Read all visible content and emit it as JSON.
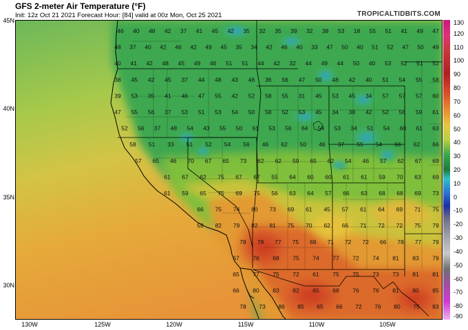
{
  "header": {
    "title": "GFS 2-meter Air Temperature (°F)",
    "subtitle": "Init: 12z Oct 21 2021   Forecast Hour: [84]   valid at 00z Mon, Oct 25 2021",
    "brand": "TROPICALTIDBITS.COM"
  },
  "axes": {
    "lat_labels": [
      "45N",
      "40N",
      "35N",
      "30N"
    ],
    "lon_labels": [
      "130W",
      "125W",
      "120W",
      "115W",
      "110W",
      "105W"
    ]
  },
  "colorbar": {
    "labels": [
      "130",
      "120",
      "110",
      "100",
      "90",
      "80",
      "70",
      "60",
      "50",
      "40",
      "30",
      "20",
      "10",
      "0",
      "-10",
      "-20",
      "-30",
      "-40",
      "-50",
      "-60",
      "-70",
      "-80",
      "-90"
    ]
  },
  "temperature_grid": [
    [
      "46",
      "40",
      "48",
      "42",
      "37",
      "41",
      "45",
      "42",
      "35",
      "32",
      "35",
      "39",
      "32",
      "38",
      "53",
      "18",
      "55",
      "51",
      "41",
      "49",
      "47"
    ],
    [
      "48",
      "37",
      "40",
      "42",
      "46",
      "42",
      "49",
      "45",
      "35",
      "34",
      "42",
      "46",
      "40",
      "33",
      "47",
      "50",
      "40",
      "51",
      "52",
      "47",
      "50",
      "49"
    ],
    [
      "40",
      "41",
      "42",
      "48",
      "45",
      "49",
      "46",
      "51",
      "51",
      "44",
      "42",
      "32",
      "44",
      "49",
      "44",
      "50",
      "40",
      "53",
      "52",
      "51",
      "52"
    ],
    [
      "38",
      "45",
      "42",
      "45",
      "37",
      "44",
      "48",
      "43",
      "46",
      "36",
      "56",
      "47",
      "50",
      "48",
      "42",
      "40",
      "51",
      "54",
      "55",
      "58"
    ],
    [
      "39",
      "53",
      "35",
      "41",
      "46",
      "47",
      "55",
      "42",
      "52",
      "58",
      "55",
      "31",
      "45",
      "53",
      "45",
      "34",
      "57",
      "57",
      "57",
      "60"
    ],
    [
      "47",
      "55",
      "56",
      "37",
      "53",
      "51",
      "53",
      "54",
      "50",
      "58",
      "52",
      "53",
      "45",
      "34",
      "38",
      "42",
      "52",
      "56",
      "59",
      "61"
    ],
    [
      "52",
      "56",
      "37",
      "48",
      "54",
      "43",
      "55",
      "50",
      "61",
      "53",
      "56",
      "64",
      "54",
      "53",
      "34",
      "51",
      "54",
      "60",
      "61",
      "63"
    ],
    [
      "58",
      "51",
      "33",
      "51",
      "52",
      "54",
      "56",
      "46",
      "62",
      "50",
      "46",
      "37",
      "55",
      "54",
      "66",
      "62",
      "66"
    ],
    [
      "57",
      "65",
      "46",
      "70",
      "67",
      "65",
      "73",
      "62",
      "62",
      "59",
      "65",
      "62",
      "54",
      "46",
      "57",
      "62",
      "67",
      "69"
    ],
    [
      "61",
      "67",
      "62",
      "75",
      "67",
      "67",
      "55",
      "64",
      "60",
      "60",
      "61",
      "61",
      "59",
      "70",
      "63",
      "69"
    ],
    [
      "61",
      "59",
      "65",
      "75",
      "69",
      "75",
      "56",
      "63",
      "64",
      "57",
      "66",
      "63",
      "68",
      "68",
      "69",
      "73"
    ],
    [
      "66",
      "75",
      "74",
      "80",
      "73",
      "69",
      "61",
      "45",
      "57",
      "61",
      "64",
      "69",
      "71",
      "75"
    ],
    [
      "59",
      "82",
      "79",
      "82",
      "81",
      "75",
      "70",
      "62",
      "66",
      "71",
      "72",
      "72",
      "75",
      "79"
    ],
    [
      "78",
      "78",
      "77",
      "75",
      "69",
      "71",
      "72",
      "72",
      "66",
      "78",
      "77",
      "79"
    ],
    [
      "67",
      "76",
      "68",
      "75",
      "74",
      "77",
      "72",
      "74",
      "81",
      "83",
      "79"
    ],
    [
      "65",
      "77",
      "75",
      "72",
      "61",
      "75",
      "75",
      "73",
      "73",
      "81",
      "81"
    ],
    [
      "66",
      "80",
      "83",
      "82",
      "65",
      "68",
      "76",
      "76",
      "81",
      "80",
      "85"
    ],
    [
      "78",
      "73",
      "86",
      "85",
      "65",
      "66",
      "72",
      "76",
      "80",
      "75",
      "83"
    ]
  ],
  "colors": {
    "ocean_north": "#7fbf5a",
    "ocean_mid": "#b8c84a",
    "ocean_south": "#e0a030",
    "cold_blue": "#3aa0d8",
    "hot_red": "#d8402a"
  }
}
